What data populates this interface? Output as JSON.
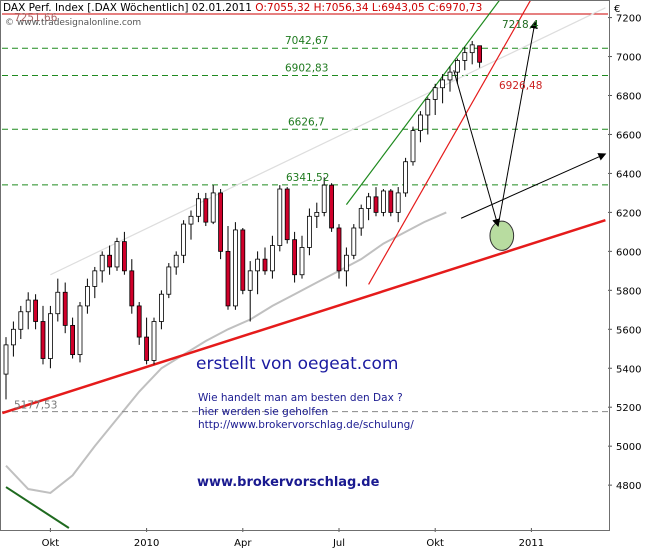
{
  "header": {
    "title": "DAX Perf. Index [.DAX  Wöchentlich] 02.01.2011",
    "ohlc": "O:7055,32 H:7056,34 L:6943,05 C:6970,73",
    "copyright": "© www.tradesignalonline.com",
    "currency": "€"
  },
  "annotations": {
    "headline": "erstellt von oegeat.com",
    "line1": "Wie handelt man am besten  den Dax ?",
    "line2": "hier werden sie geholfen",
    "line3": "http://www.brokervorschlag.de/schulung/",
    "website": "www.brokervorschlag.de"
  },
  "colors": {
    "up_candle": "#ffffff",
    "down_candle": "#d0002a",
    "level_line": "#1f8a1f",
    "trend_support": "#e51b1b",
    "moving_average": "#c0c0c0",
    "channel_upper": "#dddddd"
  },
  "chart_data": {
    "type": "candlestick",
    "title": "DAX Perf. Index [.DAX  Wöchentlich]",
    "period": "weekly",
    "y_axis": {
      "ticks": [
        4800,
        5000,
        5200,
        5400,
        5600,
        5800,
        6000,
        6200,
        6400,
        6600,
        6800,
        7000,
        7200
      ],
      "ylim": [
        4580,
        7280
      ],
      "side": "right"
    },
    "x_axis": {
      "labels": [
        "Okt",
        "2010",
        "Apr",
        "Jul",
        "Okt",
        "2011"
      ],
      "label_weeks": [
        6,
        19,
        32,
        45,
        58,
        71
      ],
      "weeks": 81
    },
    "candles": [
      {
        "o": 5370,
        "h": 5560,
        "l": 5240,
        "c": 5520
      },
      {
        "o": 5520,
        "h": 5640,
        "l": 5460,
        "c": 5600
      },
      {
        "o": 5600,
        "h": 5720,
        "l": 5550,
        "c": 5690
      },
      {
        "o": 5690,
        "h": 5790,
        "l": 5600,
        "c": 5750
      },
      {
        "o": 5750,
        "h": 5780,
        "l": 5600,
        "c": 5640
      },
      {
        "o": 5640,
        "h": 5720,
        "l": 5420,
        "c": 5450
      },
      {
        "o": 5450,
        "h": 5720,
        "l": 5400,
        "c": 5680
      },
      {
        "o": 5680,
        "h": 5860,
        "l": 5640,
        "c": 5790
      },
      {
        "o": 5790,
        "h": 5840,
        "l": 5580,
        "c": 5620
      },
      {
        "o": 5620,
        "h": 5660,
        "l": 5450,
        "c": 5470
      },
      {
        "o": 5470,
        "h": 5740,
        "l": 5430,
        "c": 5720
      },
      {
        "o": 5720,
        "h": 5860,
        "l": 5680,
        "c": 5820
      },
      {
        "o": 5820,
        "h": 5920,
        "l": 5760,
        "c": 5900
      },
      {
        "o": 5900,
        "h": 6000,
        "l": 5840,
        "c": 5980
      },
      {
        "o": 5980,
        "h": 6030,
        "l": 5880,
        "c": 5920
      },
      {
        "o": 5920,
        "h": 6070,
        "l": 5900,
        "c": 6050
      },
      {
        "o": 6050,
        "h": 6100,
        "l": 5880,
        "c": 5900
      },
      {
        "o": 5900,
        "h": 5960,
        "l": 5680,
        "c": 5720
      },
      {
        "o": 5720,
        "h": 5740,
        "l": 5520,
        "c": 5560
      },
      {
        "o": 5560,
        "h": 5660,
        "l": 5420,
        "c": 5440
      },
      {
        "o": 5440,
        "h": 5660,
        "l": 5420,
        "c": 5640
      },
      {
        "o": 5640,
        "h": 5800,
        "l": 5600,
        "c": 5780
      },
      {
        "o": 5780,
        "h": 5940,
        "l": 5760,
        "c": 5920
      },
      {
        "o": 5920,
        "h": 6000,
        "l": 5880,
        "c": 5980
      },
      {
        "o": 5980,
        "h": 6160,
        "l": 5940,
        "c": 6140
      },
      {
        "o": 6140,
        "h": 6210,
        "l": 6060,
        "c": 6180
      },
      {
        "o": 6180,
        "h": 6300,
        "l": 6150,
        "c": 6270
      },
      {
        "o": 6270,
        "h": 6300,
        "l": 6130,
        "c": 6150
      },
      {
        "o": 6150,
        "h": 6340,
        "l": 6140,
        "c": 6300
      },
      {
        "o": 6300,
        "h": 6320,
        "l": 5960,
        "c": 6000
      },
      {
        "o": 6000,
        "h": 6130,
        "l": 5700,
        "c": 5720
      },
      {
        "o": 5720,
        "h": 6150,
        "l": 5700,
        "c": 6110
      },
      {
        "o": 6110,
        "h": 6120,
        "l": 5780,
        "c": 5800
      },
      {
        "o": 5800,
        "h": 5950,
        "l": 5640,
        "c": 5900
      },
      {
        "o": 5900,
        "h": 6000,
        "l": 5780,
        "c": 5960
      },
      {
        "o": 5960,
        "h": 6020,
        "l": 5880,
        "c": 5900
      },
      {
        "o": 5900,
        "h": 6080,
        "l": 5860,
        "c": 6030
      },
      {
        "o": 6030,
        "h": 6340,
        "l": 6000,
        "c": 6320
      },
      {
        "o": 6320,
        "h": 6330,
        "l": 6040,
        "c": 6060
      },
      {
        "o": 6060,
        "h": 6100,
        "l": 5840,
        "c": 5880
      },
      {
        "o": 5880,
        "h": 6080,
        "l": 5860,
        "c": 6020
      },
      {
        "o": 6020,
        "h": 6220,
        "l": 5980,
        "c": 6180
      },
      {
        "o": 6180,
        "h": 6250,
        "l": 6120,
        "c": 6200
      },
      {
        "o": 6200,
        "h": 6380,
        "l": 6180,
        "c": 6340
      },
      {
        "o": 6340,
        "h": 6350,
        "l": 6100,
        "c": 6120
      },
      {
        "o": 6120,
        "h": 6140,
        "l": 5860,
        "c": 5900
      },
      {
        "o": 5900,
        "h": 6020,
        "l": 5820,
        "c": 5980
      },
      {
        "o": 5980,
        "h": 6140,
        "l": 5960,
        "c": 6120
      },
      {
        "o": 6120,
        "h": 6240,
        "l": 6080,
        "c": 6220
      },
      {
        "o": 6220,
        "h": 6300,
        "l": 6160,
        "c": 6280
      },
      {
        "o": 6280,
        "h": 6330,
        "l": 6180,
        "c": 6200
      },
      {
        "o": 6200,
        "h": 6320,
        "l": 6180,
        "c": 6310
      },
      {
        "o": 6310,
        "h": 6320,
        "l": 6180,
        "c": 6200
      },
      {
        "o": 6200,
        "h": 6330,
        "l": 6150,
        "c": 6300
      },
      {
        "o": 6300,
        "h": 6480,
        "l": 6280,
        "c": 6460
      },
      {
        "o": 6460,
        "h": 6640,
        "l": 6440,
        "c": 6620
      },
      {
        "o": 6620,
        "h": 6720,
        "l": 6560,
        "c": 6700
      },
      {
        "o": 6700,
        "h": 6790,
        "l": 6600,
        "c": 6780
      },
      {
        "o": 6780,
        "h": 6860,
        "l": 6700,
        "c": 6840
      },
      {
        "o": 6840,
        "h": 6910,
        "l": 6760,
        "c": 6880
      },
      {
        "o": 6880,
        "h": 6950,
        "l": 6820,
        "c": 6920
      },
      {
        "o": 6920,
        "h": 6990,
        "l": 6860,
        "c": 6980
      },
      {
        "o": 6980,
        "h": 7050,
        "l": 6930,
        "c": 7020
      },
      {
        "o": 7020,
        "h": 7080,
        "l": 6960,
        "c": 7060
      },
      {
        "o": 7055.32,
        "h": 7056.34,
        "l": 6943.05,
        "c": 6970.73
      }
    ],
    "horizontal_levels": [
      {
        "value": 7218.4,
        "label": "7218,4",
        "color": "#cc0000",
        "style": "solid"
      },
      {
        "value": 7042.67,
        "label": "7042,67",
        "color": "#1f8a1f",
        "style": "dashed"
      },
      {
        "value": 6902.83,
        "label": "6902,83",
        "color": "#1f8a1f",
        "style": "dashed"
      },
      {
        "value": 6626.7,
        "label": "6626,7",
        "color": "#1f8a1f",
        "style": "dashed"
      },
      {
        "value": 6341.52,
        "label": "6341,52",
        "color": "#1f8a1f",
        "style": "dashed"
      },
      {
        "value": 5177.53,
        "label": "5177,53",
        "color": "#888888",
        "style": "dashed"
      }
    ],
    "other_labels": [
      {
        "text": "7251,66",
        "value": 7251.66
      },
      {
        "text": "6926,48",
        "value": 6926.48
      }
    ],
    "trendlines": [
      {
        "name": "support",
        "from": [
          -0.5,
          5170
        ],
        "to": [
          81,
          6160
        ],
        "color": "#e51b1b"
      },
      {
        "name": "upper-channel",
        "from": [
          6,
          5880
        ],
        "to": [
          81,
          7250
        ],
        "color": "#dddddd"
      },
      {
        "name": "steep-channel-red",
        "from": [
          49,
          5830
        ],
        "to": [
          71.5,
          7330
        ],
        "color": "#e51b1b"
      },
      {
        "name": "steep-channel-green",
        "from": [
          46,
          6240
        ],
        "to": [
          67.5,
          7330
        ],
        "color": "#1f8a1f"
      }
    ],
    "moving_average": {
      "name": "SMA",
      "points": [
        [
          0,
          4900
        ],
        [
          3,
          4780
        ],
        [
          6,
          4760
        ],
        [
          9,
          4850
        ],
        [
          12,
          5000
        ],
        [
          15,
          5140
        ],
        [
          18,
          5280
        ],
        [
          21,
          5400
        ],
        [
          24,
          5470
        ],
        [
          27,
          5540
        ],
        [
          30,
          5600
        ],
        [
          33,
          5650
        ],
        [
          36,
          5720
        ],
        [
          39,
          5780
        ],
        [
          42,
          5840
        ],
        [
          45,
          5900
        ],
        [
          48,
          5960
        ],
        [
          51,
          6040
        ],
        [
          54,
          6100
        ],
        [
          56.5,
          6150
        ],
        [
          59.5,
          6200
        ]
      ]
    },
    "projection_arrows": [
      {
        "from": [
          60.5,
          6930
        ],
        "to": [
          66.5,
          6130
        ]
      },
      {
        "from": [
          66.5,
          6130
        ],
        "to": [
          71.5,
          7180
        ]
      },
      {
        "from": [
          61.5,
          6170
        ],
        "to": [
          81,
          6500
        ]
      }
    ],
    "target_ellipse": {
      "center": [
        67,
        6080
      ],
      "rx_weeks": 1.6,
      "ry_value": 75
    },
    "green_line_bottom": {
      "from": [
        0,
        4790
      ],
      "to": [
        8.5,
        4580
      ]
    }
  }
}
